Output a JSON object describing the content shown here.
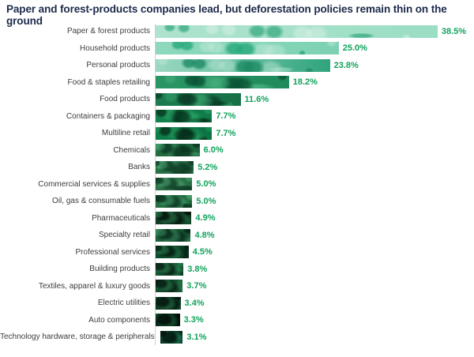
{
  "title": "Paper and forest-products companies lead, but deforestation policies remain thin on the ground",
  "colors": {
    "title_text": "#1b2949",
    "category_label_text": "#3d3d3d",
    "value_label_text": "#10a25c",
    "axis_line": "#cfcfcf",
    "background": "#ffffff"
  },
  "chart_data": {
    "type": "bar",
    "orientation": "horizontal",
    "unit": "%",
    "title": "Paper and forest-products companies lead, but deforestation policies remain thin on the ground",
    "xlabel": "",
    "ylabel": "",
    "xlim": [
      0,
      40
    ],
    "grid": false,
    "legend": null,
    "value_label_position": "right-of-bar",
    "bar_style": "bars filled with forest-photo texture, light misty green on top rows grading to near-black dark foliage on bottom rows",
    "categories": [
      "Paper & forest products",
      "Household products",
      "Personal products",
      "Food & staples retailing",
      "Food products",
      "Containers & packaging",
      "Multiline retail",
      "Chemicals",
      "Banks",
      "Commercial services & supplies",
      "Oil, gas & consumable fuels",
      "Pharmaceuticals",
      "Specialty retail",
      "Professional services",
      "Building products",
      "Textiles, apparel & luxury goods",
      "Electric utilities",
      "Auto components",
      "Technology hardware, storage & peripherals"
    ],
    "values": [
      38.5,
      25.0,
      23.8,
      18.2,
      11.6,
      7.7,
      7.7,
      6.0,
      5.2,
      5.0,
      5.0,
      4.9,
      4.8,
      4.5,
      3.8,
      3.7,
      3.4,
      3.3,
      3.1
    ],
    "value_labels": [
      "38.5%",
      "25.0%",
      "23.8%",
      "18.2%",
      "11.6%",
      "7.7%",
      "7.7%",
      "6.0%",
      "5.2%",
      "5.0%",
      "5.0%",
      "4.9%",
      "4.8%",
      "4.5%",
      "3.8%",
      "3.7%",
      "3.4%",
      "3.3%",
      "3.1%"
    ],
    "bar_palette": [
      {
        "base": "#aee3cd",
        "base2": "#9adec3",
        "dark": "#3fae85",
        "light": "#dff4ea"
      },
      {
        "base": "#8ed8bb",
        "base2": "#7dd2b2",
        "dark": "#27a87b",
        "light": "#c6ebdc"
      },
      {
        "base": "#9cd8c2",
        "base2": "#2fa47c",
        "dark": "#1d8a64",
        "light": "#bfe7d8"
      },
      {
        "base": "#2a9565",
        "base2": "#1f8a5b",
        "dark": "#0b5436",
        "light": "#4cb583"
      },
      {
        "base": "#1d7c50",
        "base2": "#176f47",
        "dark": "#093f27",
        "light": "#3aa56e"
      },
      {
        "base": "#15824e",
        "base2": "#107a48",
        "dark": "#05371f",
        "light": "#2cab6a"
      },
      {
        "base": "#107c48",
        "base2": "#0b7343",
        "dark": "#042d1a",
        "light": "#25a35f"
      },
      {
        "base": "#236d41",
        "base2": "#1d6339",
        "dark": "#0a3520",
        "light": "#4aaa74"
      },
      {
        "base": "#287145",
        "base2": "#226840",
        "dark": "#0d3a23",
        "light": "#53b17d"
      },
      {
        "base": "#2d7448",
        "base2": "#276b42",
        "dark": "#0e3c24",
        "light": "#58b480"
      },
      {
        "base": "#266f43",
        "base2": "#20663d",
        "dark": "#0a341f",
        "light": "#4cab75"
      },
      {
        "base": "#123d26",
        "base2": "#0d331f",
        "dark": "#030f09",
        "light": "#2f8b58"
      },
      {
        "base": "#1e6139",
        "base2": "#185833",
        "dark": "#072819",
        "light": "#409d69"
      },
      {
        "base": "#0e4b2d",
        "base2": "#0a4227",
        "dark": "#031a10",
        "light": "#2e925a"
      },
      {
        "base": "#145735",
        "base2": "#0f4e2e",
        "dark": "#052013",
        "light": "#36995f"
      },
      {
        "base": "#114e2f",
        "base2": "#0d4529",
        "dark": "#041c11",
        "light": "#309058"
      },
      {
        "base": "#0d3b24",
        "base2": "#09321e",
        "dark": "#02130b",
        "light": "#2d8b56"
      },
      {
        "base": "#092b1b",
        "base2": "#062314",
        "dark": "#010a06",
        "light": "#207c4b"
      },
      {
        "base": "#0c3524",
        "base2": "#08291b",
        "dark": "#021009",
        "light": "#23a874"
      }
    ]
  }
}
